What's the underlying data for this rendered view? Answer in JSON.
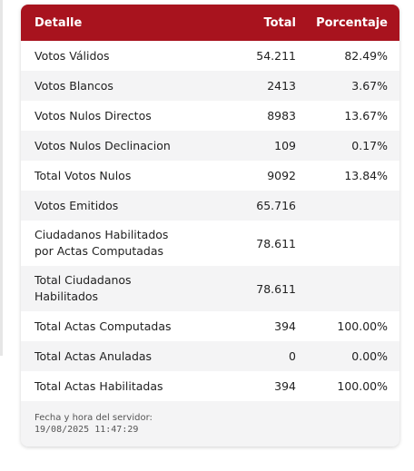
{
  "table": {
    "headers": [
      "Detalle",
      "Total",
      "Porcentaje"
    ],
    "rows": [
      {
        "detalle": "Votos Válidos",
        "total": "54.211",
        "porcentaje": "82.49%"
      },
      {
        "detalle": "Votos Blancos",
        "total": "2413",
        "porcentaje": "3.67%"
      },
      {
        "detalle": "Votos Nulos Directos",
        "total": "8983",
        "porcentaje": "13.67%"
      },
      {
        "detalle": "Votos Nulos Declinacion",
        "total": "109",
        "porcentaje": "0.17%"
      },
      {
        "detalle": "Total Votos Nulos",
        "total": "9092",
        "porcentaje": "13.84%"
      },
      {
        "detalle": "Votos Emitidos",
        "total": "65.716",
        "porcentaje": ""
      },
      {
        "detalle_line1": "Ciudadanos Habilitados",
        "detalle_line2": "por Actas Computadas",
        "total": "78.611",
        "porcentaje": ""
      },
      {
        "detalle_line1": "Total Ciudadanos",
        "detalle_line2": "Habilitados",
        "total": "78.611",
        "porcentaje": ""
      },
      {
        "detalle": "Total Actas Computadas",
        "total": "394",
        "porcentaje": "100.00%"
      },
      {
        "detalle": "Total Actas Anuladas",
        "total": "0",
        "porcentaje": "0.00%"
      },
      {
        "detalle": "Total Actas Habilitadas",
        "total": "394",
        "porcentaje": "100.00%"
      }
    ]
  },
  "footer": {
    "label": "Fecha y hora del servidor:",
    "datetime": "19/08/2025 11:47:29"
  },
  "colors": {
    "header_bg": "#a8131e",
    "stripe": "#f4f4f5"
  }
}
